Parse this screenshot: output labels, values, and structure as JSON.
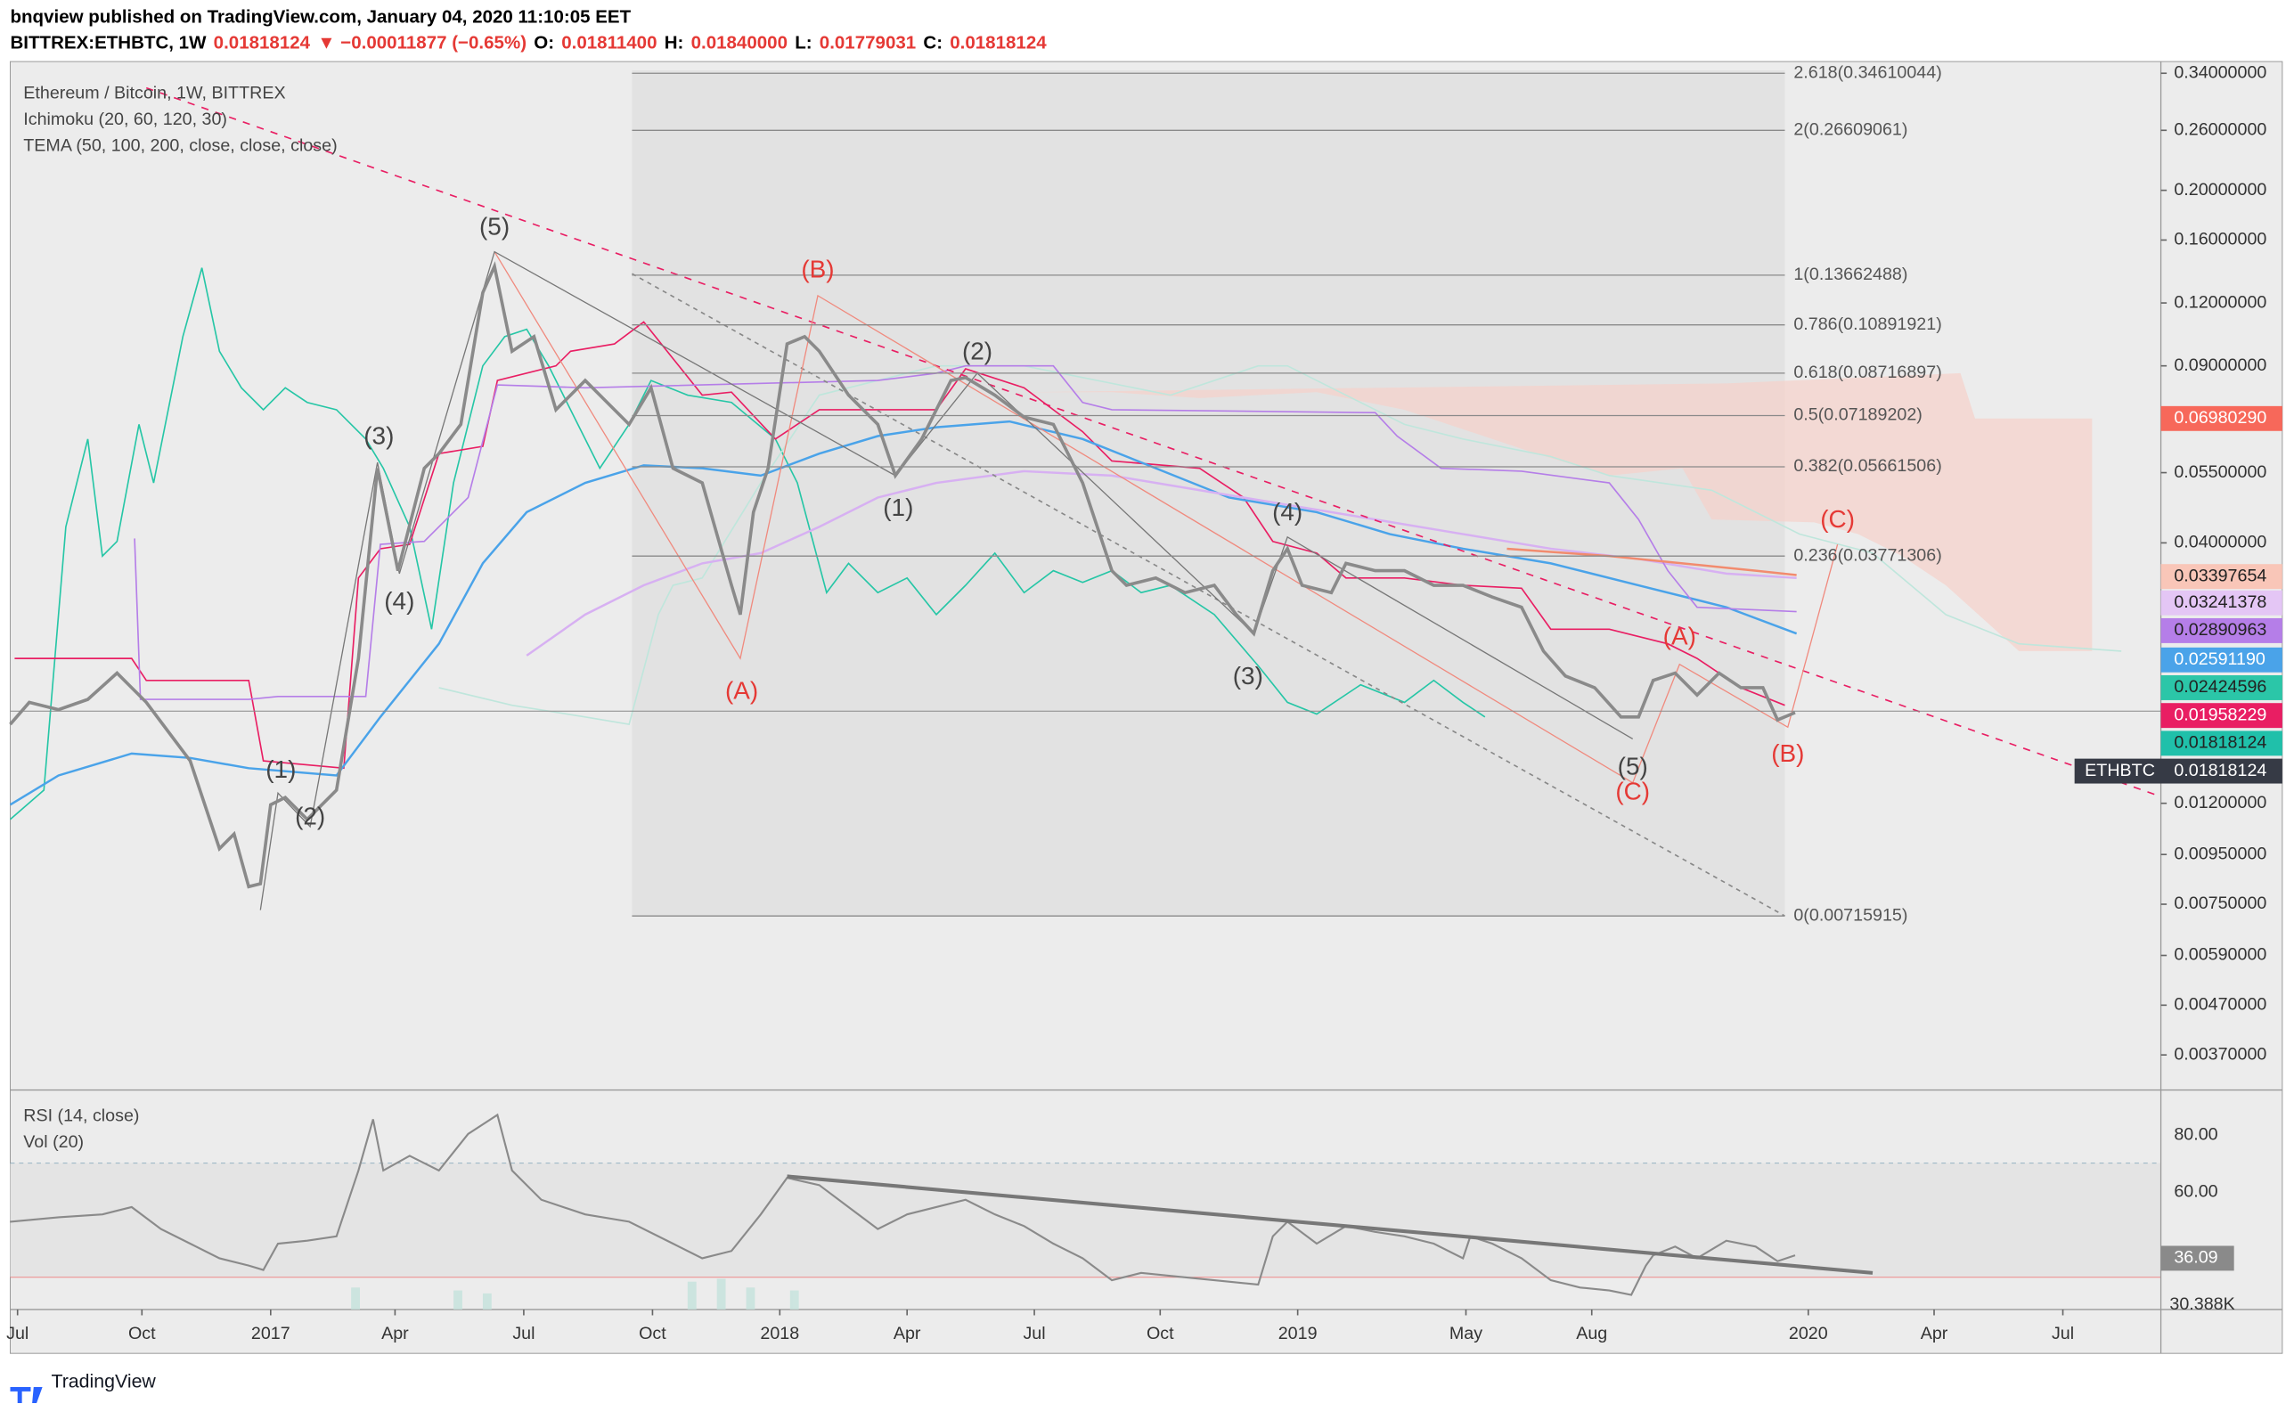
{
  "header": {
    "published": "bnqview published on TradingView.com, January 04, 2020 11:10:05 EET",
    "symbol": [
      {
        "text": "BITTREX:ETHBTC, 1W",
        "color": "#000"
      },
      {
        "text": "0.01818124",
        "color": "#e53935"
      },
      {
        "text": "▼ −0.00011877 (−0.65%)",
        "color": "#e53935"
      },
      {
        "text": "O:",
        "color": "#000"
      },
      {
        "text": "0.01811400",
        "color": "#e53935"
      },
      {
        "text": "H:",
        "color": "#000"
      },
      {
        "text": "0.01840000",
        "color": "#e53935"
      },
      {
        "text": "L:",
        "color": "#000"
      },
      {
        "text": "0.01779031",
        "color": "#e53935"
      },
      {
        "text": "C:",
        "color": "#000"
      },
      {
        "text": "0.01818124",
        "color": "#e53935"
      }
    ]
  },
  "legend": [
    "Ethereum / Bitcoin, 1W, BITTREX",
    "Ichimoku (20, 60, 120, 30)",
    "TEMA (50, 100, 200, close, close, close)"
  ],
  "price_axis": [
    "0.34000000",
    "0.26000000",
    "0.20000000",
    "0.16000000",
    "0.12000000",
    "0.09000000",
    "0.05500000",
    "0.04000000",
    "0.01200000",
    "0.00950000",
    "0.00750000",
    "0.00590000",
    "0.00470000",
    "0.00370000"
  ],
  "price_tags": [
    {
      "label": "0.06980290",
      "color": "#f7685a",
      "text_color": "#fff"
    },
    {
      "label": "0.03397654",
      "color": "#f9c6b8",
      "text_color": "#222"
    },
    {
      "label": "0.03241378",
      "color": "#e4c6f5",
      "text_color": "#222"
    },
    {
      "label": "0.02890963",
      "color": "#b57ee8",
      "text_color": "#222"
    },
    {
      "label": "0.02591190",
      "color": "#4aa3e9",
      "text_color": "#fff"
    },
    {
      "label": "0.02424596",
      "color": "#2bc6a8",
      "text_color": "#222"
    },
    {
      "label": "0.01958229",
      "color": "#e91e63",
      "text_color": "#fff"
    },
    {
      "label": "0.01818124",
      "color": "#20c0aa",
      "text_color": "#222"
    }
  ],
  "symbol_tag": {
    "name": "ETHBTC",
    "label": "0.01818124",
    "color": "#363a45",
    "text_color": "#fff"
  },
  "fib_levels": [
    "2.618(0.34610044)",
    "2(0.26609061)",
    "1(0.13662488)",
    "0.786(0.10891921)",
    "0.618(0.08716897)",
    "0.5(0.07189202)",
    "0.382(0.05661506)",
    "0.236(0.03771306)",
    "0(0.00715915)"
  ],
  "waves": [
    {
      "label": "(5)",
      "color": "#444"
    },
    {
      "label": "(B)",
      "color": "#e53935"
    },
    {
      "label": "(2)",
      "color": "#444"
    },
    {
      "label": "(3)",
      "color": "#444"
    },
    {
      "label": "(4)",
      "color": "#444"
    },
    {
      "label": "(1)",
      "color": "#444"
    },
    {
      "label": "(4)",
      "color": "#444"
    },
    {
      "label": "(A)",
      "color": "#e53935"
    },
    {
      "label": "(3)",
      "color": "#444"
    },
    {
      "label": "(1)",
      "color": "#444"
    },
    {
      "label": "(2)",
      "color": "#444"
    },
    {
      "label": "(5)",
      "color": "#444"
    },
    {
      "label": "(C)",
      "color": "#e53935"
    },
    {
      "label": "(A)",
      "color": "#e53935"
    },
    {
      "label": "(B)",
      "color": "#e53935"
    },
    {
      "label": "(C)",
      "color": "#e53935"
    }
  ],
  "rsi_pane": {
    "legend": [
      "RSI (14, close)",
      "Vol (20)"
    ],
    "axis": [
      "80.00",
      "60.00"
    ],
    "tag": {
      "label": "36.09",
      "color": "#8a8a8a"
    },
    "vol_label": "30.388K"
  },
  "time_axis": [
    "Jul",
    "Oct",
    "2017",
    "Apr",
    "Jul",
    "Oct",
    "2018",
    "Apr",
    "Jul",
    "Oct",
    "2019",
    "May",
    "Aug",
    "2020",
    "Apr",
    "Jul"
  ],
  "footer": {
    "brand": "TradingView"
  }
}
